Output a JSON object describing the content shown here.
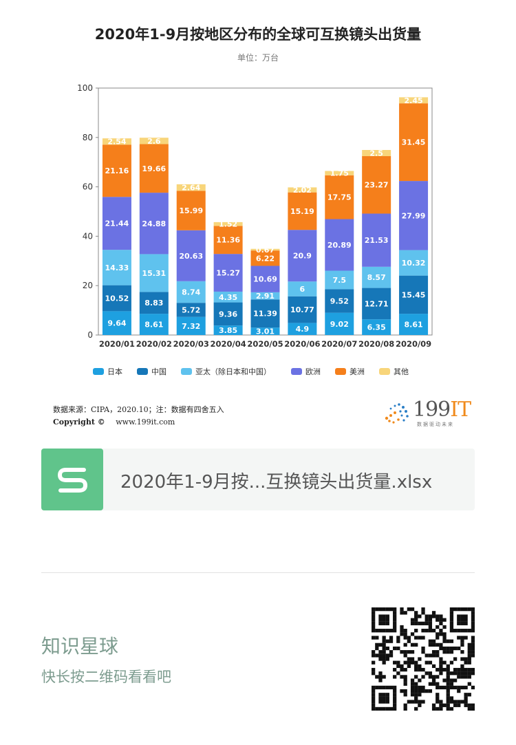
{
  "chart": {
    "title": "2020年1-9月按地区分布的全球可互换镜头出货量",
    "unit": "单位：万台"
  },
  "chart_data": {
    "type": "bar",
    "stacked": true,
    "title": "2020年1-9月按地区分布的全球可互换镜头出货量",
    "subtitle": "单位：万台",
    "categories": [
      "2020/01",
      "2020/02",
      "2020/03",
      "2020/04",
      "2020/05",
      "2020/06",
      "2020/07",
      "2020/08",
      "2020/09"
    ],
    "ylim": [
      0,
      100
    ],
    "yticks": [
      0,
      20,
      40,
      60,
      80,
      100
    ],
    "grid": false,
    "legend_position": "bottom",
    "series": [
      {
        "name": "日本",
        "color": "#1ea0e0",
        "values": [
          9.64,
          8.61,
          7.32,
          3.85,
          3.01,
          4.9,
          9.02,
          6.35,
          8.61
        ]
      },
      {
        "name": "中国",
        "color": "#1677b8",
        "values": [
          10.52,
          8.83,
          5.72,
          9.36,
          11.39,
          10.77,
          9.52,
          12.71,
          15.45
        ]
      },
      {
        "name": "亚太（除日本和中国）",
        "color": "#5fc2ee",
        "values": [
          14.33,
          15.31,
          8.74,
          4.35,
          2.91,
          6,
          7.5,
          8.57,
          10.32
        ]
      },
      {
        "name": "欧洲",
        "color": "#6b72e3",
        "values": [
          21.44,
          24.88,
          20.63,
          15.27,
          10.69,
          20.9,
          20.89,
          21.53,
          27.99
        ]
      },
      {
        "name": "美洲",
        "color": "#f57f1b",
        "values": [
          21.16,
          19.66,
          15.99,
          11.36,
          6.22,
          15.19,
          17.75,
          23.27,
          31.45
        ]
      },
      {
        "name": "其他",
        "color": "#f8d57a",
        "values": [
          2.54,
          2.6,
          2.64,
          1.52,
          0.67,
          2.02,
          1.75,
          2.5,
          2.45
        ]
      }
    ]
  },
  "footer": {
    "source": "数据来源：CIPA，2020.10；注：数据有四舍五入",
    "copyright_label": "Copyright ©",
    "website": "www.199it.com",
    "brand": "199",
    "brand_accent": "IT",
    "brand_slogan": "数据驱动未来"
  },
  "file_card": {
    "icon": "s-file-icon",
    "icon_color": "#60c48b",
    "file_name": "2020年1-9月按...互换镜头出货量.xlsx"
  },
  "promo": {
    "title": "知识星球",
    "subtitle": "快长按二维码看看吧",
    "qr_icon": "qr-code-icon"
  }
}
